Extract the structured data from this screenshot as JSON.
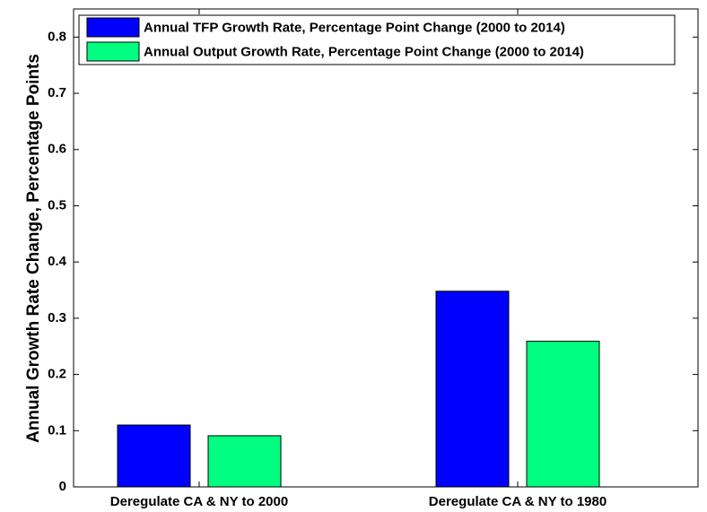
{
  "chart_data": {
    "type": "bar",
    "y_label": "Annual Growth Rate Change, Percentage Points",
    "categories": [
      "Deregulate CA & NY to 2000",
      "Deregulate CA & NY to 1980"
    ],
    "series": [
      {
        "name": "Annual TFP Growth Rate, Percentage Point Change (2000 to 2014)",
        "color": "#0000ff",
        "values": [
          0.11,
          0.348
        ]
      },
      {
        "name": "Annual Output Growth Rate, Percentage Point Change (2000 to 2014)",
        "color": "#00ff80",
        "values": [
          0.091,
          0.259
        ]
      }
    ],
    "ylim": [
      0,
      0.85
    ],
    "yticks": [
      0,
      0.1,
      0.2,
      0.3,
      0.4,
      0.5,
      0.6,
      0.7,
      0.8
    ],
    "legend": "upper left"
  }
}
